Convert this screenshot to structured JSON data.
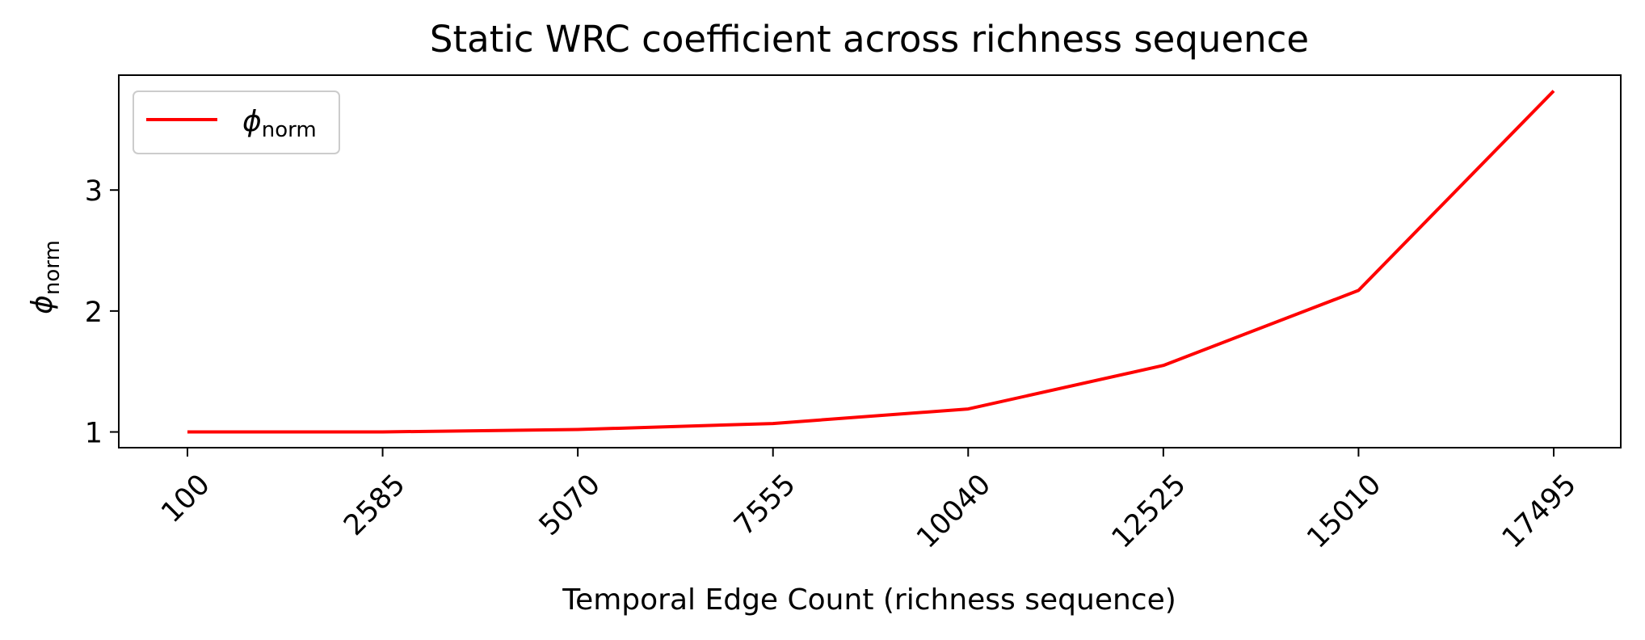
{
  "chart_data": {
    "type": "line",
    "title": "Static WRC coefficient across richness sequence",
    "xlabel": "Temporal Edge Count (richness sequence)",
    "ylabel": {
      "base": "ϕ",
      "sub": "norm"
    },
    "x": [
      100,
      2585,
      5070,
      7555,
      10040,
      12525,
      15010,
      17495
    ],
    "x_tick_labels": [
      "100",
      "2585",
      "5070",
      "7555",
      "10040",
      "12525",
      "15010",
      "17495"
    ],
    "y_ticks": [
      1,
      2,
      3
    ],
    "y_tick_labels": [
      "1",
      "2",
      "3"
    ],
    "ylim": [
      0.87,
      3.95
    ],
    "grid": false,
    "legend_position": "upper left",
    "series": [
      {
        "name": {
          "base": "ϕ",
          "sub": "norm"
        },
        "color": "#ff0000",
        "values": [
          1.0,
          1.0,
          1.02,
          1.07,
          1.19,
          1.55,
          2.17,
          3.82
        ]
      }
    ]
  }
}
